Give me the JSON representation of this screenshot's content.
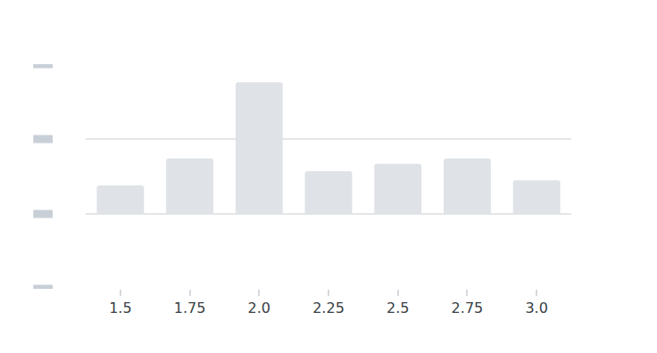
{
  "chart_data": {
    "type": "bar",
    "categories": [
      "1.5",
      "1.75",
      "2.0",
      "2.25",
      "2.5",
      "2.75",
      "3.0"
    ],
    "values": [
      0.38,
      0.74,
      1.76,
      0.57,
      0.67,
      0.74,
      0.45
    ],
    "color": "#dfe2e6",
    "ylim": [
      -1,
      2
    ],
    "yticks": [
      -1,
      0,
      1,
      2
    ],
    "grid": true,
    "tick_labels": "x"
  }
}
